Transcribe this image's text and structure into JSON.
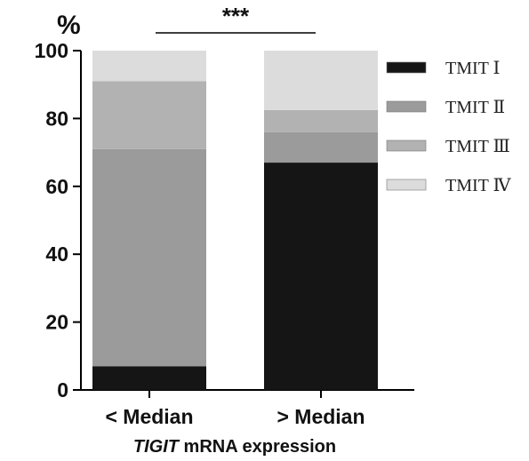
{
  "chart_data": {
    "type": "bar",
    "stacked": true,
    "title": "",
    "ylabel": "%",
    "xlabel_italic": "TIGIT",
    "xlabel_rest": " mRNA expression",
    "ylim": [
      0,
      100
    ],
    "yticks": [
      "0",
      "20",
      "40",
      "60",
      "80",
      "100"
    ],
    "categories": [
      "< Median",
      "> Median"
    ],
    "series": [
      {
        "name": "TMIT Ⅰ",
        "color": "#151515",
        "values": [
          7,
          67
        ]
      },
      {
        "name": "TMIT Ⅱ",
        "color": "#9b9b9b",
        "values": [
          64,
          9
        ]
      },
      {
        "name": "TMIT Ⅲ",
        "color": "#b2b2b2",
        "values": [
          20,
          6.5
        ]
      },
      {
        "name": "TMIT Ⅳ",
        "color": "#dcdcdc",
        "values": [
          9,
          17.5
        ]
      }
    ],
    "significance": "***",
    "legend_position": "right",
    "grid": false
  }
}
